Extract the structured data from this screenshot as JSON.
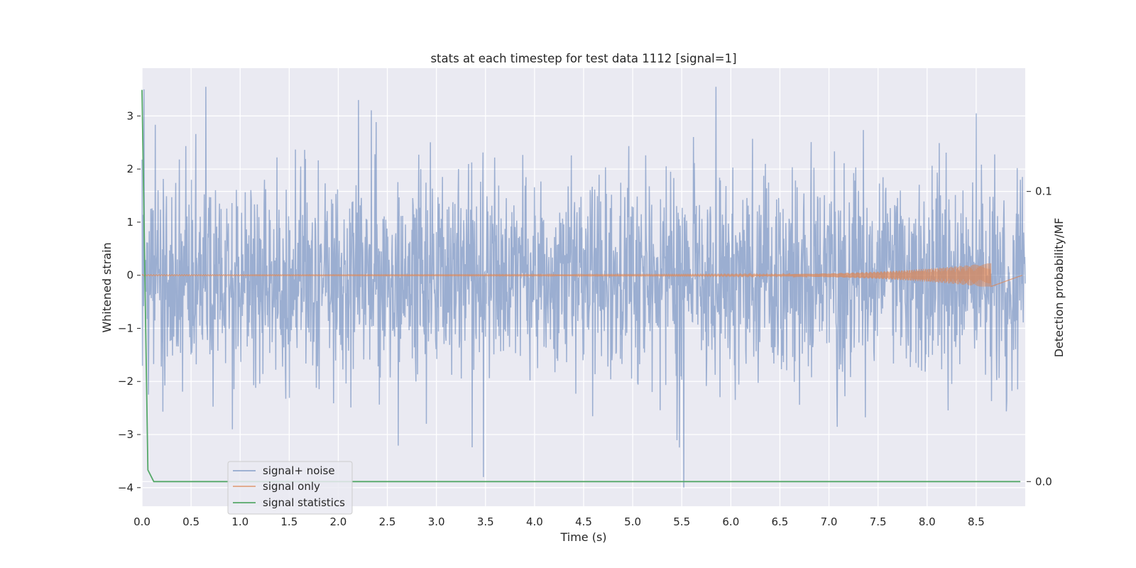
{
  "chart_data": {
    "type": "line",
    "title": "stats at each timestep for test data 1112 [signal=1]",
    "xlabel": "Time (s)",
    "ylabel": "Whitened strain",
    "y2label": "Detection probability/MF",
    "xlim": [
      0,
      9.0
    ],
    "ylim": [
      -4.35,
      3.9
    ],
    "y2lim": [
      -0.0085,
      0.1425
    ],
    "x_ticks": [
      0.0,
      0.5,
      1.0,
      1.5,
      2.0,
      2.5,
      3.0,
      3.5,
      4.0,
      4.5,
      5.0,
      5.5,
      6.0,
      6.5,
      7.0,
      7.5,
      8.0,
      8.5
    ],
    "x_tick_labels": [
      "0.0",
      "0.5",
      "1.0",
      "1.5",
      "2.0",
      "2.5",
      "3.0",
      "3.5",
      "4.0",
      "4.5",
      "5.0",
      "5.5",
      "6.0",
      "6.5",
      "7.0",
      "7.5",
      "8.0",
      "8.5"
    ],
    "y_ticks": [
      3,
      2,
      1,
      0,
      -1,
      -2,
      -3,
      -4
    ],
    "y_tick_labels": [
      "3",
      "2",
      "1",
      "0",
      "−1",
      "−2",
      "−3",
      "−4"
    ],
    "y2_ticks": [
      0.1,
      0.0
    ],
    "y2_tick_labels": [
      "0.1",
      "0.0"
    ],
    "grid": true,
    "legend_position": "lower-left",
    "series": [
      {
        "name": "signal+ noise",
        "axis": "left",
        "color": "#4c72b0",
        "kind": "noise",
        "x_range": [
          0,
          9.0
        ],
        "samples": 2200,
        "std": 0.95,
        "seed": 1112,
        "notable_peaks": [
          {
            "x": 0.02,
            "y": 3.5
          },
          {
            "x": 0.65,
            "y": 3.55
          },
          {
            "x": 5.85,
            "y": 3.55
          },
          {
            "x": 8.5,
            "y": 3.05
          },
          {
            "x": 3.48,
            "y": -3.8
          },
          {
            "x": 5.52,
            "y": -4.0
          },
          {
            "x": 0.92,
            "y": -2.9
          }
        ]
      },
      {
        "name": "signal only",
        "axis": "left",
        "color": "#dd8452",
        "kind": "chirp",
        "x_range": [
          0,
          8.65
        ],
        "baseline": 0,
        "growth_start": 5.5,
        "peak_x": 8.63,
        "peak_amplitude": 0.22
      },
      {
        "name": "signal statistics",
        "axis": "right",
        "color": "#55a868",
        "x": [
          0.0,
          0.06,
          0.12,
          0.2,
          1.0,
          2.0,
          3.0,
          4.0,
          5.0,
          6.0,
          7.0,
          8.0,
          8.95
        ],
        "values": [
          0.135,
          0.004,
          0.0,
          0.0,
          0.0,
          0.0,
          0.0,
          0.0,
          0.0,
          0.0,
          0.0,
          0.0,
          0.0
        ]
      }
    ]
  }
}
